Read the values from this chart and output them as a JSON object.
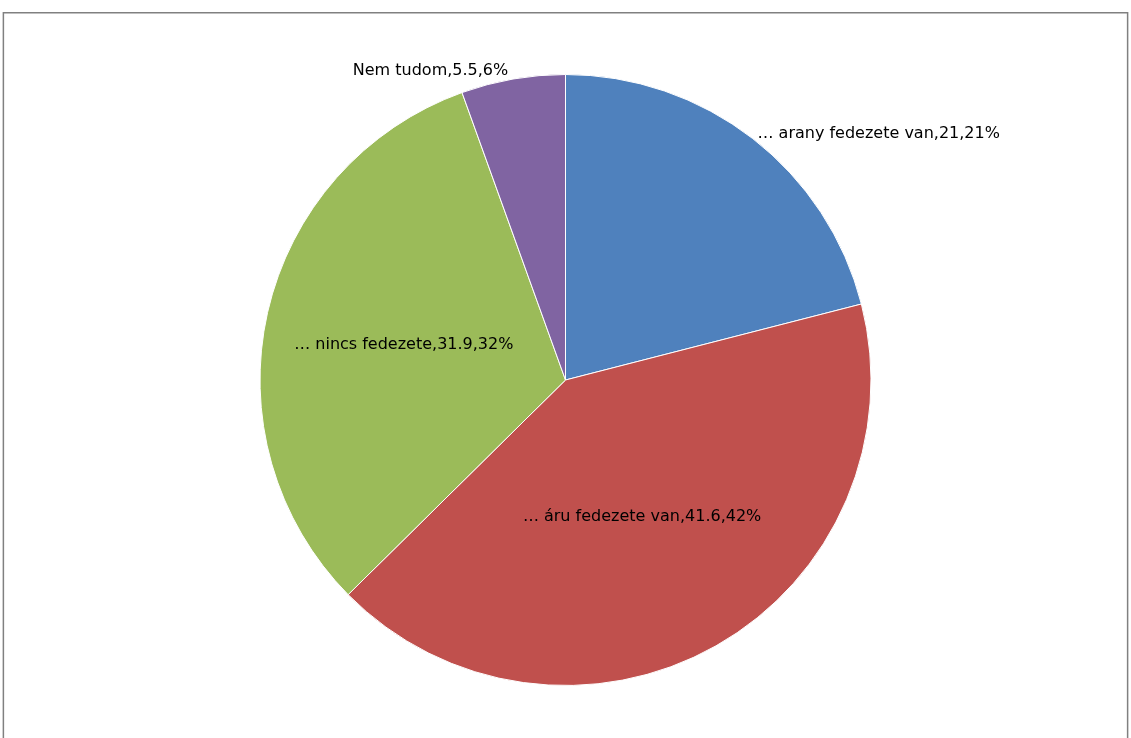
{
  "chart_data": {
    "type": "pie",
    "categories": [
      "… arany fedezete van,21,21%",
      "… áru fedezete van,41.6,42%",
      "… nincs fedezete,31.9,32%",
      "Nem tudom,5.5,6%"
    ],
    "values": [
      21,
      41.6,
      31.9,
      5.5
    ],
    "colors": [
      "#4f81bd",
      "#c0504d",
      "#9bbb59",
      "#8064a2"
    ],
    "legend": false
  }
}
